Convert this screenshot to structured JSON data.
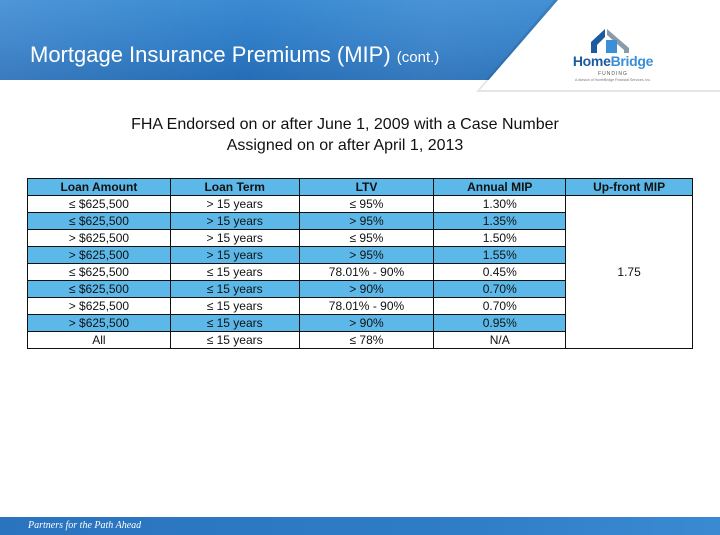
{
  "header": {
    "title": "Mortgage Insurance Premiums (MIP)",
    "title_suffix": "(cont.)",
    "colors": {
      "band": "#2f7cc6",
      "table_highlight": "#5cb8e8"
    }
  },
  "logo": {
    "icon": "house-logo-icon",
    "brand_home": "Home",
    "brand_bridge": "Bridge",
    "funding": "FUNDING",
    "tagline": "A division of HomeBridge Financial Services, Inc."
  },
  "subtitle": {
    "line1": "FHA Endorsed on or after June 1, 2009 with a Case Number",
    "line2": "Assigned on or after April 1, 2013"
  },
  "table": {
    "columns": [
      "Loan Amount",
      "Loan Term",
      "LTV",
      "Annual MIP",
      "Up-front MIP"
    ],
    "rows": [
      {
        "loan_amount": "≤ $625,500",
        "loan_term": "> 15 years",
        "ltv": "≤ 95%",
        "annual_mip": "1.30%"
      },
      {
        "loan_amount": "≤ $625,500",
        "loan_term": "> 15 years",
        "ltv": "> 95%",
        "annual_mip": "1.35%"
      },
      {
        "loan_amount": "> $625,500",
        "loan_term": "> 15 years",
        "ltv": "≤ 95%",
        "annual_mip": "1.50%"
      },
      {
        "loan_amount": "> $625,500",
        "loan_term": "> 15 years",
        "ltv": "> 95%",
        "annual_mip": "1.55%"
      },
      {
        "loan_amount": "≤ $625,500",
        "loan_term": "≤ 15 years",
        "ltv": "78.01% - 90%",
        "annual_mip": "0.45%"
      },
      {
        "loan_amount": "≤ $625,500",
        "loan_term": "≤ 15 years",
        "ltv": "> 90%",
        "annual_mip": "0.70%"
      },
      {
        "loan_amount": "> $625,500",
        "loan_term": "≤ 15 years",
        "ltv": "78.01% - 90%",
        "annual_mip": "0.70%"
      },
      {
        "loan_amount": "> $625,500",
        "loan_term": "≤ 15 years",
        "ltv": "> 90%",
        "annual_mip": "0.95%"
      },
      {
        "loan_amount": "All",
        "loan_term": "≤ 15 years",
        "ltv": "≤ 78%",
        "annual_mip": "N/A"
      }
    ],
    "upfront_mip": "1.75"
  },
  "footer": {
    "text": "Partners for the Path Ahead"
  }
}
